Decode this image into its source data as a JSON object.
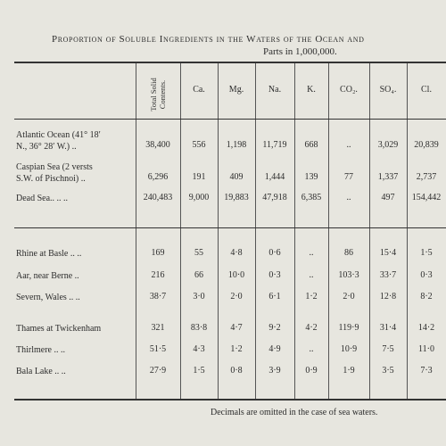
{
  "title": "Proportion of Soluble Ingredients in the Waters of the Ocean and",
  "subtitle": "Parts in 1,000,000.",
  "columns": [
    "Total Solid Contents.",
    "Ca.",
    "Mg.",
    "Na.",
    "K.",
    "CO₂.",
    "SO₄.",
    "Cl."
  ],
  "rows": [
    {
      "label": [
        "Atlantic Ocean (41° 18′",
        "N., 36° 28′ W.)   .."
      ],
      "values": [
        "38,400",
        "556",
        "1,198",
        "11,719",
        "668",
        "..",
        "3,029",
        "20,839"
      ]
    },
    {
      "label": [
        "Caspian Sea (2 versts",
        "S.W. of Pischnoi)  .."
      ],
      "values": [
        "6,296",
        "191",
        "409",
        "1,444",
        "139",
        "77",
        "1,337",
        "2,737"
      ]
    },
    {
      "label": [
        "Dead Sea..   ..   .."
      ],
      "values": [
        "240,483",
        "9,000",
        "19,883",
        "47,918",
        "6,385",
        "..",
        "497",
        "154,442"
      ]
    },
    {
      "label": [
        "Rhine at Basle  ..   .."
      ],
      "values": [
        "169",
        "55",
        "4·8",
        "0·6",
        "..",
        "86",
        "15·4",
        "1·5"
      ]
    },
    {
      "label": [
        "Aar, near Berne    .."
      ],
      "values": [
        "216",
        "66",
        "10·0",
        "0·3",
        "..",
        "103·3",
        "33·7",
        "0·3"
      ]
    },
    {
      "label": [
        "Severn, Wales ..   .."
      ],
      "values": [
        "38·7",
        "3·0",
        "2·0",
        "6·1",
        "1·2",
        "2·0",
        "12·8",
        "8·2"
      ]
    },
    {
      "label": [
        "Thames at Twickenham"
      ],
      "values": [
        "321",
        "83·8",
        "4·7",
        "9·2",
        "4·2",
        "119·9",
        "31·4",
        "14·2"
      ]
    },
    {
      "label": [
        "Thirlmere    ..   .."
      ],
      "values": [
        "51·5",
        "4·3",
        "1·2",
        "4·9",
        "..",
        "10·9",
        "7·5",
        "11·0"
      ]
    },
    {
      "label": [
        "Bala Lake    ..   .."
      ],
      "values": [
        "27·9",
        "1·5",
        "0·8",
        "3·9",
        "0·9",
        "1·9",
        "3·5",
        "7·3"
      ]
    }
  ],
  "footer": "Decimals are omitted in the case of sea waters."
}
